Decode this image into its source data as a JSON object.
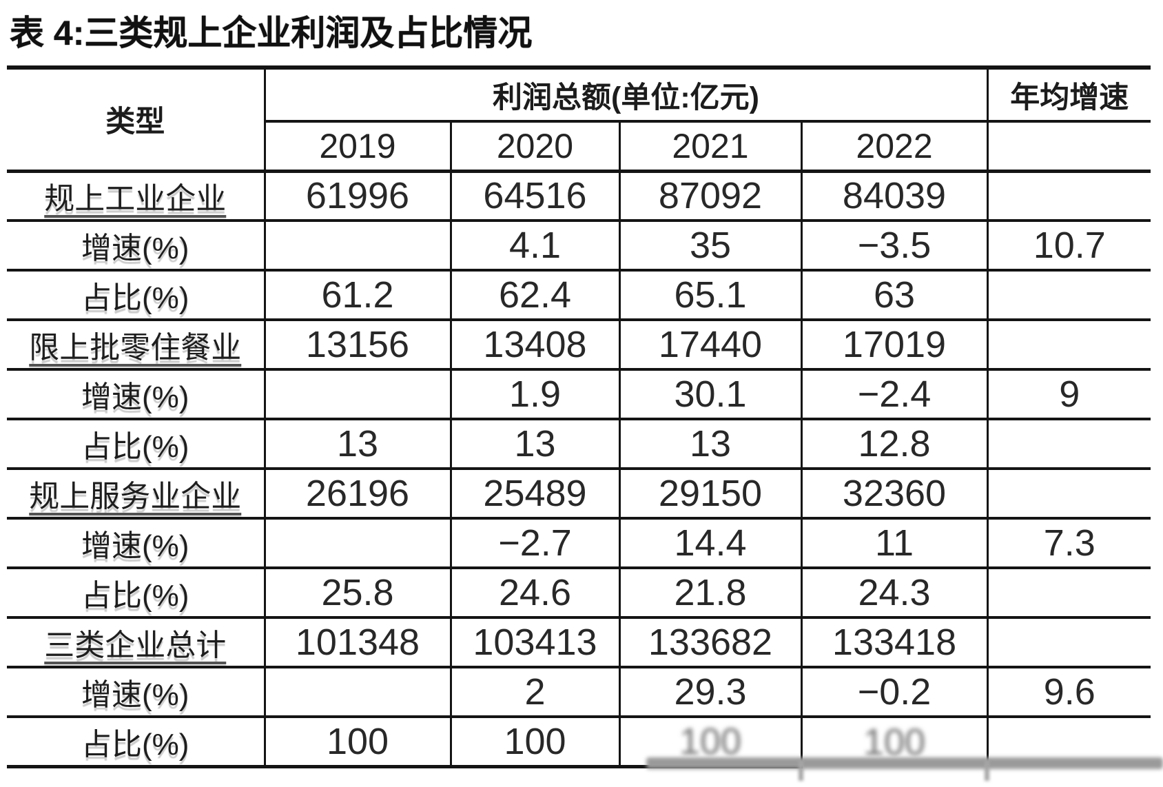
{
  "title": "表 4:三类规上企业利润及占比情况",
  "table": {
    "header": {
      "type_label": "类型",
      "profit_label": "利润总额(单位:亿元)",
      "growth_label": "年均增速",
      "years": [
        "2019",
        "2020",
        "2021",
        "2022"
      ]
    },
    "rows": [
      {
        "label": "规上工业企业",
        "category": true,
        "cells": [
          "61996",
          "64516",
          "87092",
          "84039",
          ""
        ]
      },
      {
        "label": "增速(%)",
        "category": false,
        "cells": [
          "",
          "4.1",
          "35",
          "−3.5",
          "10.7"
        ]
      },
      {
        "label": "占比(%)",
        "category": false,
        "cells": [
          "61.2",
          "62.4",
          "65.1",
          "63",
          ""
        ]
      },
      {
        "label": "限上批零住餐业",
        "category": true,
        "cells": [
          "13156",
          "13408",
          "17440",
          "17019",
          ""
        ]
      },
      {
        "label": "增速(%)",
        "category": false,
        "cells": [
          "",
          "1.9",
          "30.1",
          "−2.4",
          "9"
        ]
      },
      {
        "label": "占比(%)",
        "category": false,
        "cells": [
          "13",
          "13",
          "13",
          "12.8",
          ""
        ]
      },
      {
        "label": "规上服务业企业",
        "category": true,
        "cells": [
          "26196",
          "25489",
          "29150",
          "32360",
          ""
        ]
      },
      {
        "label": "增速(%)",
        "category": false,
        "cells": [
          "",
          "−2.7",
          "14.4",
          "11",
          "7.3"
        ]
      },
      {
        "label": "占比(%)",
        "category": false,
        "cells": [
          "25.8",
          "24.6",
          "21.8",
          "24.3",
          ""
        ]
      },
      {
        "label": "三类企业总计",
        "category": true,
        "cells": [
          "101348",
          "103413",
          "133682",
          "133418",
          ""
        ]
      },
      {
        "label": "增速(%)",
        "category": false,
        "cells": [
          "",
          "2",
          "29.3",
          "−0.2",
          "9.6"
        ]
      },
      {
        "label": "占比(%)",
        "category": false,
        "cells": [
          "100",
          "100",
          "100",
          "100",
          ""
        ]
      }
    ]
  },
  "chart_data": {
    "type": "table",
    "title": "表 4:三类规上企业利润及占比情况",
    "column_group_label": "利润总额(单位:亿元)",
    "columns": [
      "类型",
      "2019",
      "2020",
      "2021",
      "2022",
      "年均增速"
    ],
    "rows": [
      [
        "规上工业企业",
        61996,
        64516,
        87092,
        84039,
        null
      ],
      [
        "增速(%)",
        null,
        4.1,
        35,
        -3.5,
        10.7
      ],
      [
        "占比(%)",
        61.2,
        62.4,
        65.1,
        63,
        null
      ],
      [
        "限上批零住餐业",
        13156,
        13408,
        17440,
        17019,
        null
      ],
      [
        "增速(%)",
        null,
        1.9,
        30.1,
        -2.4,
        9
      ],
      [
        "占比(%)",
        13,
        13,
        13,
        12.8,
        null
      ],
      [
        "规上服务业企业",
        26196,
        25489,
        29150,
        32360,
        null
      ],
      [
        "增速(%)",
        null,
        -2.7,
        14.4,
        11,
        7.3
      ],
      [
        "占比(%)",
        25.8,
        24.6,
        21.8,
        24.3,
        null
      ],
      [
        "三类企业总计",
        101348,
        103413,
        133682,
        133418,
        null
      ],
      [
        "增速(%)",
        null,
        2,
        29.3,
        -0.2,
        9.6
      ],
      [
        "占比(%)",
        100,
        100,
        100,
        100,
        null
      ]
    ]
  },
  "colors": {
    "line": "#141414",
    "text": "#202020",
    "smudge": "#9a9a9a",
    "background": "#ffffff"
  }
}
